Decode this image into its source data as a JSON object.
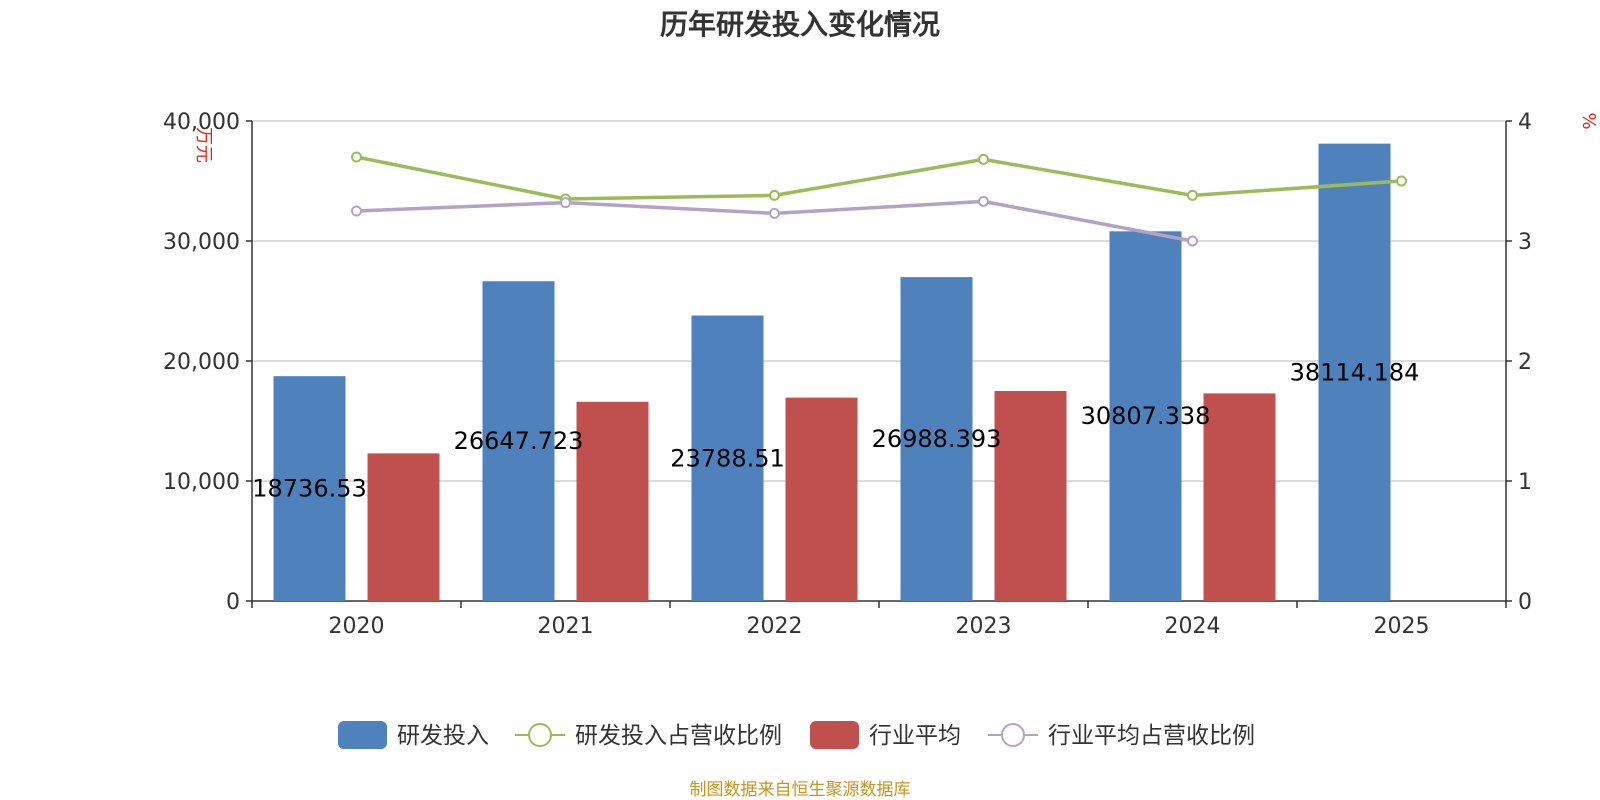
{
  "chart_data": {
    "type": "bar",
    "title": "历年研发投入变化情况",
    "categories": [
      "2020",
      "2021",
      "2022",
      "2023",
      "2024",
      "2025"
    ],
    "y_left": {
      "unit": "万元",
      "ylim": [
        0,
        40000
      ],
      "ticks": [
        0,
        10000,
        20000,
        30000,
        40000
      ],
      "tick_labels": [
        "0",
        "10,000",
        "20,000",
        "30,000",
        "40,000"
      ]
    },
    "y_right": {
      "unit": "%",
      "ylim": [
        0,
        4
      ],
      "ticks": [
        0,
        1,
        2,
        3,
        4
      ],
      "tick_labels": [
        "0",
        "1",
        "2",
        "3",
        "4"
      ]
    },
    "series": [
      {
        "name": "研发投入",
        "kind": "bar",
        "axis": "left",
        "color": "#4f81bd",
        "values": [
          18736.53,
          26647.723,
          23788.51,
          26988.393,
          30807.338,
          38114.184
        ],
        "labels": [
          "18736.53",
          "26647.723",
          "23788.51",
          "26988.393",
          "30807.338",
          "38114.184"
        ]
      },
      {
        "name": "研发投入占营收比例",
        "kind": "line",
        "axis": "right",
        "color": "#9bbb59",
        "values": [
          3.7,
          3.35,
          3.38,
          3.68,
          3.38,
          3.5
        ]
      },
      {
        "name": "行业平均",
        "kind": "bar",
        "axis": "left",
        "color": "#c0504d",
        "values": [
          12300,
          16600,
          16950,
          17500,
          17300,
          null
        ]
      },
      {
        "name": "行业平均占营收比例",
        "kind": "line",
        "axis": "right",
        "color": "#b3a2c7",
        "values": [
          3.25,
          3.32,
          3.23,
          3.33,
          3.0,
          null
        ]
      }
    ],
    "legend_position": "bottom",
    "grid": true
  },
  "footer": {
    "source": "制图数据来自恒生聚源数据库"
  }
}
